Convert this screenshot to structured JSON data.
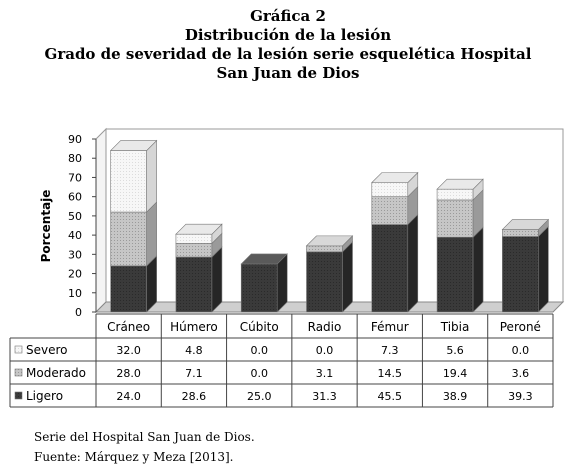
{
  "chart_data": {
    "type": "bar",
    "stacked": true,
    "three_d": true,
    "title": "Gráfica 2",
    "subtitle_lines": [
      "Distribución de la lesión",
      "Grado de severidad de la lesión serie esquelética Hospital",
      "San Juan de Dios"
    ],
    "xlabel": "",
    "ylabel": "Porcentaje",
    "ylim": [
      0,
      90
    ],
    "yticks": [
      "0",
      "10",
      "20",
      "30",
      "40",
      "50",
      "60",
      "70",
      "80",
      "90"
    ],
    "categories": [
      "Cráneo",
      "Húmero",
      "Cúbito",
      "Radio",
      "Fémur",
      "Tibia",
      "Peroné"
    ],
    "series": [
      {
        "name": "Ligero",
        "color": "#3a3a3a",
        "values": [
          24.0,
          28.6,
          25.0,
          31.3,
          45.5,
          38.9,
          39.3
        ],
        "labels": [
          "24.0",
          "28.6",
          "25.0",
          "31.3",
          "45.5",
          "38.9",
          "39.3"
        ]
      },
      {
        "name": "Moderado",
        "color": "#bdbdbd",
        "values": [
          28.0,
          7.1,
          0.0,
          3.1,
          14.5,
          19.4,
          3.6
        ],
        "labels": [
          "28.0",
          "7.1",
          "0.0",
          "3.1",
          "14.5",
          "19.4",
          "3.6"
        ]
      },
      {
        "name": "Severo",
        "color": "#f4f4f4",
        "values": [
          32.0,
          4.8,
          0.0,
          0.0,
          7.3,
          5.6,
          0.0
        ],
        "labels": [
          "32.0",
          "4.8",
          "0.0",
          "0.0",
          "7.3",
          "5.6",
          "0.0"
        ]
      }
    ],
    "table_row_order": [
      "Severo",
      "Moderado",
      "Ligero"
    ],
    "grid": false,
    "legend": "data-table-below"
  },
  "footnotes": {
    "line1": "Serie del Hospital San Juan de Dios.",
    "line2": "Fuente: Márquez y Meza [2013]."
  }
}
